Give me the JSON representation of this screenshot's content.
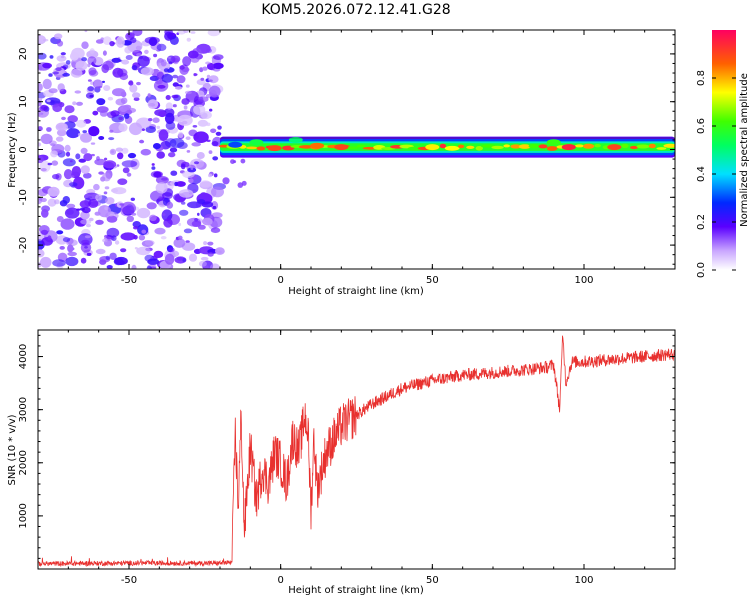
{
  "figure_title": "KOM5.2026.072.12.41.G28",
  "chart_data": [
    {
      "type": "heatmap",
      "title": "KOM5.2026.072.12.41.G28",
      "xlabel": "Height of straight line (km)",
      "ylabel": "Frequency (Hz)",
      "xlim": [
        -80,
        130
      ],
      "ylim": [
        -25,
        25
      ],
      "xticks": [
        -50,
        0,
        50,
        100
      ],
      "yticks": [
        -20,
        -10,
        0,
        10,
        20
      ],
      "noise_region_x": [
        -80,
        -20
      ],
      "band_x": [
        -20,
        130
      ],
      "band_frequency_hz": 0.5,
      "band_features": [
        {
          "x": -15,
          "f": 1.0,
          "amp": 0.3
        },
        {
          "x": -8,
          "f": 1.5,
          "amp": 0.55
        },
        {
          "x": -2,
          "f": 0.3,
          "amp": 0.9
        },
        {
          "x": 5,
          "f": 2.0,
          "amp": 0.5
        },
        {
          "x": 12,
          "f": 0.8,
          "amp": 0.85
        },
        {
          "x": 20,
          "f": 0.5,
          "amp": 0.9
        },
        {
          "x": 50,
          "f": 0.5,
          "amp": 0.75
        },
        {
          "x": 90,
          "f": 1.5,
          "amp": 0.6
        },
        {
          "x": 95,
          "f": 0.5,
          "amp": 0.95
        },
        {
          "x": 110,
          "f": 0.5,
          "amp": 0.9
        }
      ],
      "colorbar": {
        "label": "Normalized spectral amplitude",
        "ticks": [
          "0.0",
          "0.2",
          "0.4",
          "0.6",
          "0.8"
        ],
        "range": [
          0,
          1
        ]
      }
    },
    {
      "type": "line",
      "xlabel": "Height of straight line (km)",
      "ylabel": "SNR (10 * v/v)",
      "xlim": [
        -80,
        130
      ],
      "ylim": [
        0,
        4500
      ],
      "xticks": [
        -50,
        0,
        50,
        100
      ],
      "yticks": [
        1000,
        2000,
        3000,
        4000
      ],
      "series": [
        {
          "name": "SNR",
          "color": "#e8302e",
          "x": [
            -80,
            -50,
            -20,
            -16,
            -15,
            -14,
            -13,
            -12,
            -10,
            -8,
            -6,
            -4,
            -2,
            0,
            2,
            4,
            6,
            8,
            9,
            10,
            11,
            12,
            15,
            20,
            30,
            40,
            50,
            60,
            70,
            80,
            88,
            90,
            92,
            93,
            94,
            96,
            100,
            110,
            120,
            130
          ],
          "values": [
            100,
            110,
            110,
            120,
            2600,
            1200,
            2900,
            700,
            2300,
            1300,
            1900,
            1600,
            2200,
            2000,
            1600,
            2500,
            2200,
            2900,
            2600,
            1100,
            2500,
            1500,
            2200,
            2700,
            3100,
            3400,
            3550,
            3650,
            3700,
            3750,
            3800,
            3850,
            3000,
            4450,
            3500,
            3900,
            3900,
            3950,
            4000,
            4050
          ]
        }
      ]
    }
  ],
  "colors": {
    "line": "#e8302e",
    "axis": "#000000",
    "noise_purple": "#7a22e6"
  }
}
